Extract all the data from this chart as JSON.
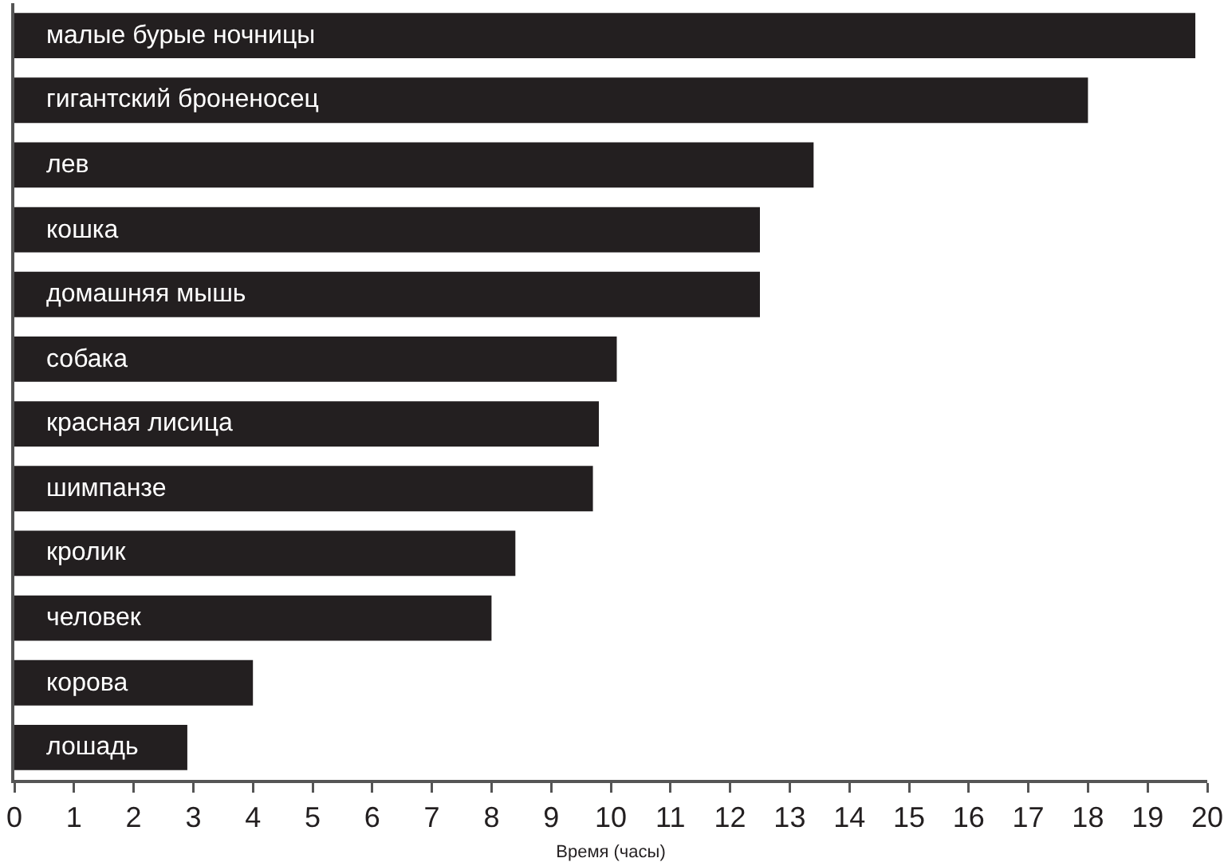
{
  "chart_data": {
    "type": "bar",
    "orientation": "horizontal",
    "xlabel": "Время (часы)",
    "categories": [
      "малые бурые ночницы",
      "гигантский броненосец",
      "лев",
      "кошка",
      "домашняя мышь",
      "собака",
      "красная лисица",
      "шимпанзе",
      "кролик",
      "человек",
      "корова",
      "лошадь"
    ],
    "values": [
      19.8,
      18.0,
      13.4,
      12.5,
      12.5,
      10.1,
      9.8,
      9.7,
      8.4,
      8.0,
      4.0,
      2.9
    ],
    "color": "#231f20",
    "xlim": [
      0,
      20
    ],
    "xticks": [
      0,
      1,
      2,
      3,
      4,
      5,
      6,
      7,
      8,
      9,
      10,
      11,
      12,
      13,
      14,
      15,
      16,
      17,
      18,
      19,
      20
    ]
  }
}
